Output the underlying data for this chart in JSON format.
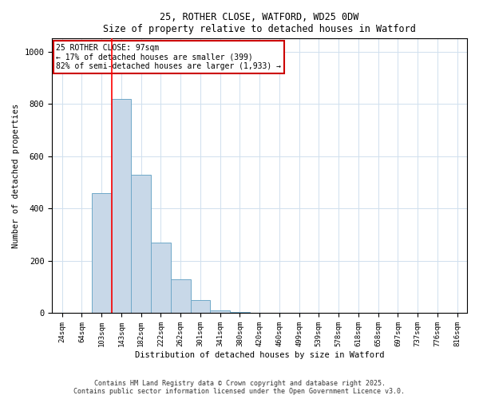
{
  "title_line1": "25, ROTHER CLOSE, WATFORD, WD25 0DW",
  "title_line2": "Size of property relative to detached houses in Watford",
  "xlabel": "Distribution of detached houses by size in Watford",
  "ylabel": "Number of detached properties",
  "bar_labels": [
    "24sqm",
    "64sqm",
    "103sqm",
    "143sqm",
    "182sqm",
    "222sqm",
    "262sqm",
    "301sqm",
    "341sqm",
    "380sqm",
    "420sqm",
    "460sqm",
    "499sqm",
    "539sqm",
    "578sqm",
    "618sqm",
    "658sqm",
    "697sqm",
    "737sqm",
    "776sqm",
    "816sqm"
  ],
  "bar_values": [
    0,
    0,
    460,
    820,
    530,
    270,
    130,
    50,
    10,
    3,
    1,
    0,
    0,
    0,
    0,
    0,
    0,
    0,
    0,
    0,
    0
  ],
  "bar_color": "#c8d8e8",
  "bar_edgecolor": "#6fa8c8",
  "ylim": [
    0,
    1050
  ],
  "red_line_x": 2.5,
  "annotation_text": "25 ROTHER CLOSE: 97sqm\n← 17% of detached houses are smaller (399)\n82% of semi-detached houses are larger (1,933) →",
  "annotation_box_color": "#ffffff",
  "annotation_box_edgecolor": "#cc0000",
  "footnote1": "Contains HM Land Registry data © Crown copyright and database right 2025.",
  "footnote2": "Contains public sector information licensed under the Open Government Licence v3.0.",
  "grid_color": "#d0e0ee",
  "background_color": "#ffffff"
}
